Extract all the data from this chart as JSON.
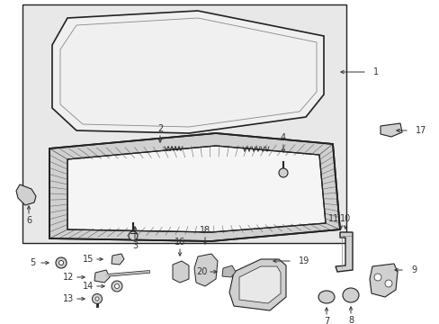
{
  "bg_color": "#ffffff",
  "box_bg": "#e8e8e8",
  "line_color": "#222222",
  "label_color": "#333333",
  "fig_w": 4.89,
  "fig_h": 3.6,
  "dpi": 100
}
